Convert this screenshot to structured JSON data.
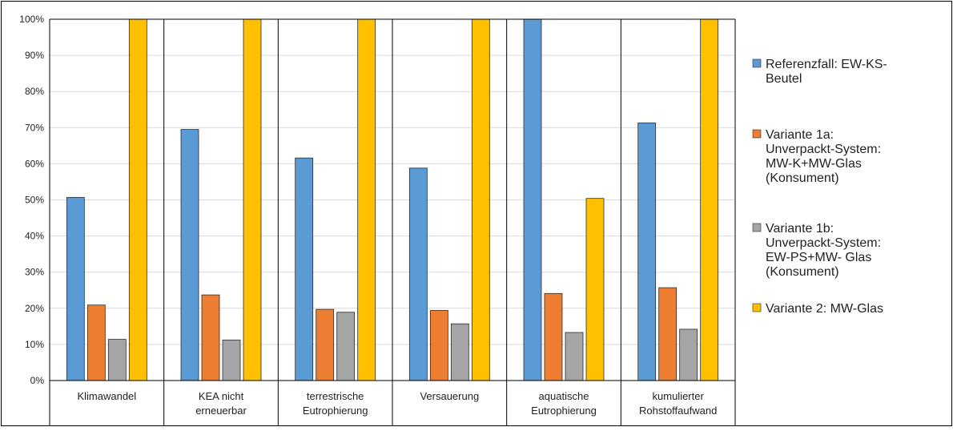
{
  "chart_data": {
    "type": "bar",
    "categories": [
      [
        "Klimawandel"
      ],
      [
        "KEA nicht",
        "erneuerbar"
      ],
      [
        "terrestrische",
        "Eutrophierung"
      ],
      [
        "Versauerung"
      ],
      [
        "aquatische",
        "Eutrophierung"
      ],
      [
        "kumulierter",
        "Rohstoffaufwand"
      ]
    ],
    "series": [
      {
        "name": [
          "Referenzfall: EW-KS-",
          "Beutel"
        ],
        "color": "#5b9bd5",
        "values": [
          50.7,
          69.5,
          61.6,
          58.8,
          100,
          71.3
        ]
      },
      {
        "name": [
          "Variante 1a:",
          "Unverpackt-System:",
          "MW-K+MW-Glas",
          "(Konsument)"
        ],
        "color": "#ed7d31",
        "values": [
          20.9,
          23.7,
          19.7,
          19.4,
          24.1,
          25.7
        ]
      },
      {
        "name": [
          "Variante 1b:",
          "Unverpackt-System:",
          "EW-PS+MW- Glas",
          "(Konsument)"
        ],
        "color": "#a5a5a5",
        "values": [
          11.4,
          11.2,
          18.9,
          15.7,
          13.3,
          14.2
        ]
      },
      {
        "name": [
          "Variante 2: MW-Glas"
        ],
        "color": "#ffc000",
        "values": [
          100,
          100,
          100,
          100,
          50.4,
          100
        ]
      }
    ],
    "y_ticks": [
      "0%",
      "10%",
      "20%",
      "30%",
      "40%",
      "50%",
      "60%",
      "70%",
      "80%",
      "90%",
      "100%"
    ],
    "ylim": [
      0,
      100
    ],
    "grid": true,
    "legend_position": "right"
  }
}
